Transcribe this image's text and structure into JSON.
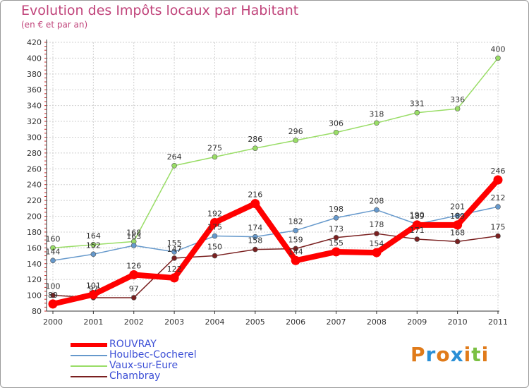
{
  "chart_data": {
    "type": "line",
    "title": "Evolution des Impôts locaux par Habitant",
    "subtitle": "(en € et par an)",
    "xlabel": "",
    "ylabel": "",
    "categories": [
      "2000",
      "2001",
      "2002",
      "2003",
      "2004",
      "2005",
      "2006",
      "2007",
      "2008",
      "2009",
      "2010",
      "2011"
    ],
    "ylim": [
      80,
      420
    ],
    "yticks": [
      80,
      100,
      120,
      140,
      160,
      180,
      200,
      220,
      240,
      260,
      280,
      300,
      320,
      340,
      360,
      380,
      400,
      420
    ],
    "series": [
      {
        "name": "ROUVRAY",
        "color": "#ff0000",
        "values": [
          89,
          101,
          126,
          122,
          192,
          216,
          144,
          155,
          154,
          189,
          189,
          246
        ],
        "labels": [
          "89",
          "101",
          "126",
          "122",
          "192",
          "216",
          "144",
          "155",
          "154",
          "189",
          "189",
          "246"
        ]
      },
      {
        "name": "Houlbec-Cocherel",
        "color": "#6699cc",
        "values": [
          144,
          152,
          163,
          155,
          175,
          174,
          182,
          198,
          208,
          190,
          201,
          212
        ],
        "labels": [
          "144",
          "152",
          "163",
          "155",
          "175",
          "174",
          "182",
          "198",
          "208",
          "190",
          "201",
          "212"
        ]
      },
      {
        "name": "Vaux-sur-Eure",
        "color": "#99dd66",
        "values": [
          160,
          164,
          168,
          264,
          275,
          286,
          296,
          306,
          318,
          331,
          336,
          400
        ],
        "labels": [
          "160",
          "164",
          "168",
          "264",
          "275",
          "286",
          "296",
          "306",
          "318",
          "331",
          "336",
          "400"
        ]
      },
      {
        "name": "Chambray",
        "color": "#7a2020",
        "values": [
          100,
          97,
          97,
          147,
          150,
          158,
          159,
          173,
          178,
          171,
          168,
          175
        ],
        "labels": [
          "100",
          "97",
          "97",
          "147",
          "150",
          "158",
          "159",
          "173",
          "178",
          "171",
          "168",
          "175"
        ]
      }
    ]
  },
  "legend": {
    "items": [
      {
        "label": "ROUVRAY",
        "color": "#ff0000"
      },
      {
        "label": "Houlbec-Cocherel",
        "color": "#6699cc"
      },
      {
        "label": "Vaux-sur-Eure",
        "color": "#99dd66"
      },
      {
        "label": "Chambray",
        "color": "#7a2020"
      }
    ]
  },
  "brand": {
    "letters": [
      "P",
      "r",
      "o",
      "x",
      "i",
      "t",
      "i"
    ],
    "colors": [
      "#e07b1a",
      "#2a8fd6",
      "#e07b1a",
      "#2a8fd6",
      "#e07b1a",
      "#7bc043",
      "#e07b1a"
    ]
  }
}
